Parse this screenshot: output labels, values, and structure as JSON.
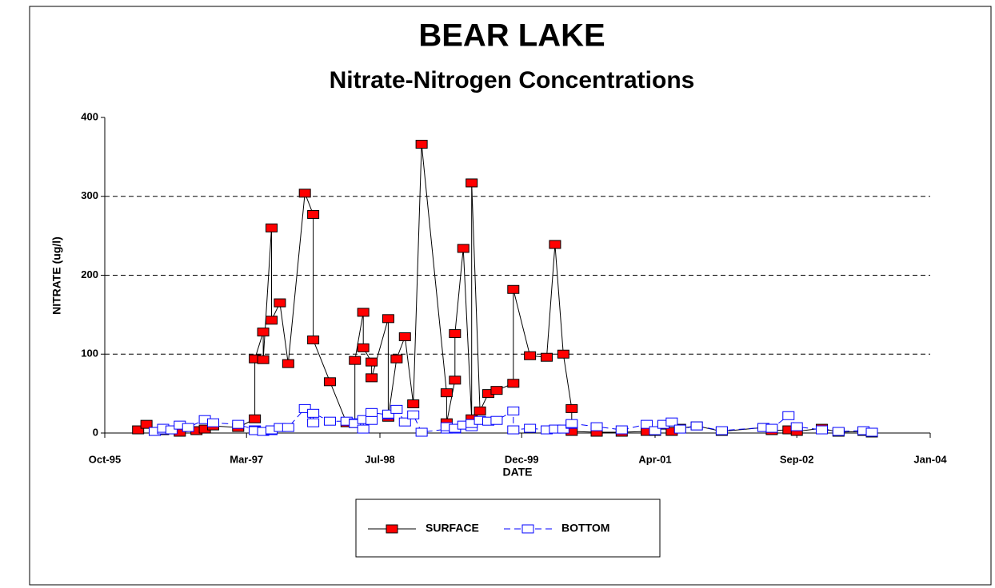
{
  "chart_data": {
    "type": "line",
    "title": "BEAR LAKE",
    "subtitle": "Nitrate-Nitrogen Concentrations",
    "x_label": "DATE",
    "y_label": "NITRATE (ug/l)",
    "xlim": [
      "1995-10",
      "2004-01"
    ],
    "xticks": [
      {
        "value": "1995-10",
        "label": "Oct-95"
      },
      {
        "value": "1997-03",
        "label": "Mar-97"
      },
      {
        "value": "1998-07",
        "label": "Jul-98"
      },
      {
        "value": "1999-12",
        "label": "Dec-99"
      },
      {
        "value": "2001-04",
        "label": "Apr-01"
      },
      {
        "value": "2002-09",
        "label": "Sep-02"
      },
      {
        "value": "2004-01",
        "label": "Jan-04"
      }
    ],
    "ylim": [
      0,
      400
    ],
    "yticks": [
      0,
      100,
      200,
      300,
      400
    ],
    "grid": true,
    "legend": "bottom",
    "series": [
      {
        "name": "SURFACE",
        "color": "#ff0000",
        "x": [
          "1996-02",
          "1996-03",
          "1996-04",
          "1996-05",
          "1996-07",
          "1996-09",
          "1996-10",
          "1996-11",
          "1997-02",
          "1997-04",
          "1997-04",
          "1997-05",
          "1997-05",
          "1997-06",
          "1997-06",
          "1997-07",
          "1997-08",
          "1997-10",
          "1997-11",
          "1997-11",
          "1998-01",
          "1998-03",
          "1998-04",
          "1998-04",
          "1998-05",
          "1998-05",
          "1998-06",
          "1998-06",
          "1998-08",
          "1998-08",
          "1998-09",
          "1998-10",
          "1998-11",
          "1998-12",
          "1999-03",
          "1999-03",
          "1999-04",
          "1999-04",
          "1999-05",
          "1999-06",
          "1999-06",
          "1999-07",
          "1999-08",
          "1999-09",
          "1999-11",
          "1999-11",
          "2000-01",
          "2000-03",
          "2000-04",
          "2000-05",
          "2000-06",
          "2000-06",
          "2000-09",
          "2000-12",
          "2001-03",
          "2001-04",
          "2001-05",
          "2001-06",
          "2001-07",
          "2001-09",
          "2001-12",
          "2002-05",
          "2002-06",
          "2002-08",
          "2002-09",
          "2002-12",
          "2003-02",
          "2003-05",
          "2003-06"
        ],
        "values": [
          4,
          11,
          2,
          3,
          1,
          3,
          5,
          9,
          7,
          18,
          94,
          128,
          93,
          260,
          143,
          165,
          88,
          304,
          277,
          118,
          65,
          13,
          12,
          92,
          153,
          108,
          90,
          70,
          145,
          20,
          94,
          122,
          37,
          366,
          51,
          13,
          67,
          126,
          234,
          18,
          317,
          28,
          50,
          54,
          63,
          182,
          98,
          96,
          239,
          100,
          31,
          2,
          1,
          1,
          2,
          2,
          10,
          2,
          6,
          9,
          2,
          7,
          3,
          4,
          2,
          6,
          1,
          2,
          0
        ]
      },
      {
        "name": "BOTTOM",
        "color": "#0000ff",
        "x": [
          "1996-04",
          "1996-05",
          "1996-05",
          "1996-06",
          "1996-07",
          "1996-08",
          "1996-10",
          "1996-11",
          "1997-02",
          "1997-04",
          "1997-04",
          "1997-05",
          "1997-06",
          "1997-06",
          "1997-07",
          "1997-08",
          "1997-10",
          "1997-11",
          "1997-11",
          "1998-01",
          "1998-03",
          "1998-04",
          "1998-04",
          "1998-05",
          "1998-05",
          "1998-06",
          "1998-06",
          "1998-08",
          "1998-08",
          "1998-09",
          "1998-10",
          "1998-11",
          "1998-12",
          "1999-03",
          "1999-03",
          "1999-04",
          "1999-04",
          "1999-05",
          "1999-06",
          "1999-06",
          "1999-07",
          "1999-08",
          "1999-09",
          "1999-11",
          "1999-11",
          "2000-01",
          "2000-03",
          "2000-04",
          "2000-05",
          "2000-06",
          "2000-06",
          "2000-09",
          "2000-12",
          "2001-03",
          "2001-04",
          "2001-05",
          "2001-06",
          "2001-07",
          "2001-09",
          "2001-12",
          "2002-05",
          "2002-06",
          "2002-08",
          "2002-09",
          "2002-12",
          "2003-02",
          "2003-05",
          "2003-06"
        ],
        "values": [
          2,
          4,
          6,
          4,
          10,
          7,
          17,
          13,
          11,
          4,
          3,
          2,
          3,
          4,
          7,
          7,
          31,
          13,
          25,
          15,
          15,
          13,
          12,
          17,
          5,
          16,
          26,
          23,
          24,
          30,
          14,
          23,
          1,
          5,
          8,
          5,
          6,
          10,
          8,
          12,
          16,
          15,
          16,
          28,
          4,
          6,
          4,
          5,
          5,
          11,
          12,
          8,
          4,
          11,
          3,
          11,
          14,
          5,
          9,
          3,
          7,
          6,
          22,
          8,
          4,
          2,
          3,
          1
        ]
      }
    ]
  }
}
